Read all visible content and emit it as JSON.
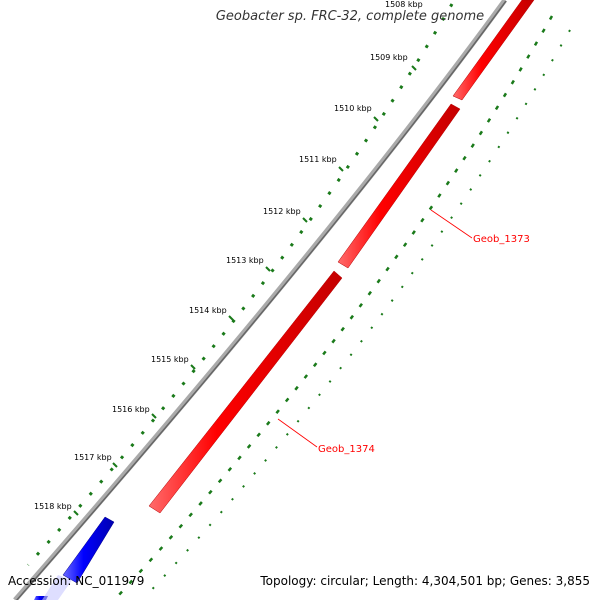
{
  "title": "Geobacter sp. FRC-32, complete genome",
  "footer": {
    "accession": "Accession: NC_011979",
    "summary": "Topology: circular; Length: 4,304,501 bp; Genes: 3,855"
  },
  "ticks": [
    "1508 kbp",
    "1509 kbp",
    "1510 kbp",
    "1511 kbp",
    "1512 kbp",
    "1513 kbp",
    "1514 kbp",
    "1515 kbp",
    "1516 kbp",
    "1517 kbp",
    "1518 kbp"
  ],
  "genes": [
    {
      "name": "Geob_1373",
      "strand": "reverse",
      "color": "#ff0000"
    },
    {
      "name": "Geob_1374",
      "strand": "reverse",
      "color": "#ff0000"
    }
  ],
  "colors": {
    "backbone": "#888888",
    "reverse_strand": "#ff0000",
    "forward_strand": "#0000ff",
    "gc_track": "#1a7a1a",
    "label_line": "#ff0000"
  }
}
